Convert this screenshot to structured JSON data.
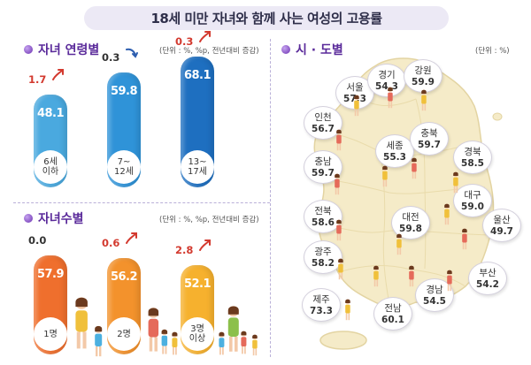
{
  "title": "18세 미만 자녀와 함께 사는 여성의 고용률",
  "age_section": {
    "heading": "자녀 연령별",
    "unit": "(단위 : %, %p, 전년대비 증감)"
  },
  "count_section": {
    "heading": "자녀수별",
    "unit": "(단위 : %, %p, 전년대비 증감)"
  },
  "region_section": {
    "heading": "시 · 도별",
    "unit": "(단위 : %)"
  },
  "colors": {
    "age_bars": [
      "#4aa9df",
      "#2f93d8",
      "#1e6fc0"
    ],
    "count_bars": [
      "#ef6f2d",
      "#f3922c",
      "#f6b12e"
    ],
    "up": "#d33a2f",
    "flat": "#333333",
    "down_arrow": "#2e5fb0",
    "map_fill": "#f5ebc8",
    "accent": "#5a2a9a"
  },
  "chart_data": [
    {
      "type": "bar",
      "categories": [
        "6세\n이하",
        "7~\n12세",
        "13~\n17세"
      ],
      "values": [
        48.1,
        59.8,
        68.1
      ],
      "changes": [
        "1.7",
        "0.3",
        "0.3"
      ],
      "change_dir": [
        "up",
        "down",
        "up"
      ]
    },
    {
      "type": "bar",
      "categories": [
        "1명",
        "2명",
        "3명\n이상"
      ],
      "values": [
        57.9,
        56.2,
        52.1
      ],
      "changes": [
        "0.0",
        "0.6",
        "2.8"
      ],
      "change_dir": [
        "flat",
        "up",
        "up"
      ]
    },
    {
      "type": "table",
      "regions": [
        {
          "name": "서울",
          "value": "57.3"
        },
        {
          "name": "경기",
          "value": "54.3"
        },
        {
          "name": "강원",
          "value": "59.9"
        },
        {
          "name": "인천",
          "value": "56.7"
        },
        {
          "name": "세종",
          "value": "55.3"
        },
        {
          "name": "충북",
          "value": "59.7"
        },
        {
          "name": "경북",
          "value": "58.5"
        },
        {
          "name": "충남",
          "value": "59.7"
        },
        {
          "name": "대구",
          "value": "59.0"
        },
        {
          "name": "전북",
          "value": "58.6"
        },
        {
          "name": "대전",
          "value": "59.8"
        },
        {
          "name": "울산",
          "value": "49.7"
        },
        {
          "name": "광주",
          "value": "58.2"
        },
        {
          "name": "부산",
          "value": "54.2"
        },
        {
          "name": "제주",
          "value": "73.3"
        },
        {
          "name": "경남",
          "value": "54.5"
        },
        {
          "name": "전남",
          "value": "60.1"
        }
      ]
    }
  ]
}
